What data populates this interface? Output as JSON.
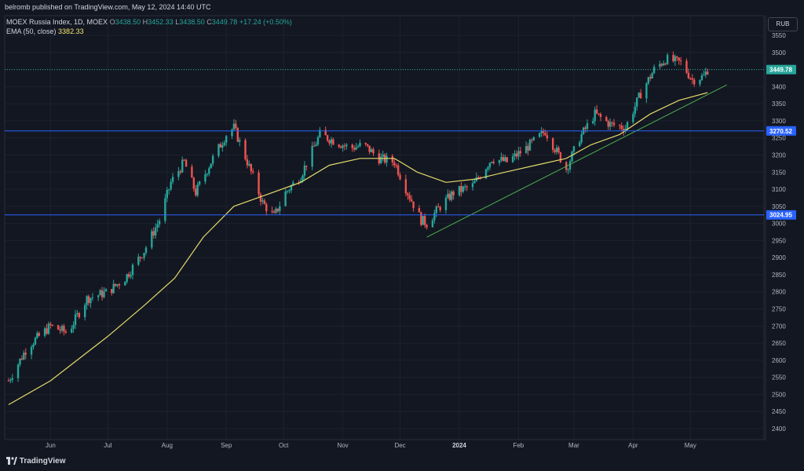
{
  "header": {
    "publisher_text": "belromb published on TradingView.com, May 12, 2024 14:40 UTC"
  },
  "legend": {
    "symbol": "MOEX Russia Index, 1D, MOEX",
    "o_label": "O",
    "o_value": "3438.50",
    "h_label": "H",
    "h_value": "3452.33",
    "l_label": "L",
    "l_value": "3438.50",
    "c_label": "C",
    "c_value": "3449.78",
    "change": "+17.24 (+0.50%)",
    "ema_label": "EMA (50, close)",
    "ema_value": "3382.33"
  },
  "currency_button": "RUB",
  "footer": {
    "logo_text": "TradingView"
  },
  "colors": {
    "background": "#131722",
    "up": "#26a69a",
    "down": "#ef5350",
    "ema": "#e3d96a",
    "hline": "#2962ff",
    "trendline": "#4caf50",
    "grid": "#1e222d"
  },
  "chart_data": {
    "type": "candlestick",
    "ylim": [
      2380,
      3580
    ],
    "y_ticks": [
      2400,
      2450,
      2500,
      2550,
      2600,
      2650,
      2700,
      2750,
      2800,
      2850,
      2900,
      2950,
      3000,
      3050,
      3100,
      3150,
      3200,
      3250,
      3300,
      3350,
      3400,
      3450,
      3500,
      3550
    ],
    "x_ticks": [
      {
        "label": "Jun",
        "date": "2023-06-01"
      },
      {
        "label": "Jul",
        "date": "2023-07-01"
      },
      {
        "label": "Aug",
        "date": "2023-08-01"
      },
      {
        "label": "Sep",
        "date": "2023-09-01"
      },
      {
        "label": "Oct",
        "date": "2023-10-01"
      },
      {
        "label": "Nov",
        "date": "2023-11-01"
      },
      {
        "label": "Dec",
        "date": "2023-12-01"
      },
      {
        "label": "2024",
        "date": "2024-01-01"
      },
      {
        "label": "Feb",
        "date": "2024-02-01"
      },
      {
        "label": "Mar",
        "date": "2024-03-01"
      },
      {
        "label": "Apr",
        "date": "2024-04-01"
      },
      {
        "label": "May",
        "date": "2024-05-01"
      }
    ],
    "price_path": [
      [
        "2023-05-10",
        2540
      ],
      [
        "2023-05-20",
        2640
      ],
      [
        "2023-06-01",
        2700
      ],
      [
        "2023-06-10",
        2680
      ],
      [
        "2023-06-20",
        2780
      ],
      [
        "2023-07-01",
        2800
      ],
      [
        "2023-07-10",
        2840
      ],
      [
        "2023-07-20",
        2920
      ],
      [
        "2023-07-28",
        3010
      ],
      [
        "2023-08-03",
        3120
      ],
      [
        "2023-08-10",
        3180
      ],
      [
        "2023-08-16",
        3090
      ],
      [
        "2023-08-24",
        3180
      ],
      [
        "2023-09-01",
        3260
      ],
      [
        "2023-09-05",
        3280
      ],
      [
        "2023-09-12",
        3180
      ],
      [
        "2023-09-20",
        3060
      ],
      [
        "2023-09-26",
        3020
      ],
      [
        "2023-10-02",
        3090
      ],
      [
        "2023-10-10",
        3140
      ],
      [
        "2023-10-20",
        3260
      ],
      [
        "2023-10-28",
        3240
      ],
      [
        "2023-11-05",
        3220
      ],
      [
        "2023-11-12",
        3230
      ],
      [
        "2023-11-20",
        3190
      ],
      [
        "2023-11-28",
        3180
      ],
      [
        "2023-12-05",
        3090
      ],
      [
        "2023-12-12",
        3010
      ],
      [
        "2023-12-15",
        3000
      ],
      [
        "2023-12-22",
        3050
      ],
      [
        "2023-12-29",
        3090
      ],
      [
        "2024-01-08",
        3110
      ],
      [
        "2024-01-18",
        3190
      ],
      [
        "2024-01-26",
        3180
      ],
      [
        "2024-02-05",
        3220
      ],
      [
        "2024-02-15",
        3270
      ],
      [
        "2024-02-22",
        3200
      ],
      [
        "2024-02-26",
        3160
      ],
      [
        "2024-03-04",
        3250
      ],
      [
        "2024-03-12",
        3320
      ],
      [
        "2024-03-20",
        3290
      ],
      [
        "2024-03-28",
        3280
      ],
      [
        "2024-04-05",
        3380
      ],
      [
        "2024-04-12",
        3450
      ],
      [
        "2024-04-18",
        3480
      ],
      [
        "2024-04-26",
        3470
      ],
      [
        "2024-05-02",
        3420
      ],
      [
        "2024-05-08",
        3430
      ],
      [
        "2024-05-10",
        3449.78
      ]
    ],
    "ema": [
      [
        "2023-05-10",
        2470
      ],
      [
        "2023-06-01",
        2540
      ],
      [
        "2023-07-01",
        2670
      ],
      [
        "2023-07-20",
        2760
      ],
      [
        "2023-08-05",
        2840
      ],
      [
        "2023-08-20",
        2960
      ],
      [
        "2023-09-05",
        3050
      ],
      [
        "2023-09-20",
        3080
      ],
      [
        "2023-10-10",
        3120
      ],
      [
        "2023-10-25",
        3170
      ],
      [
        "2023-11-10",
        3190
      ],
      [
        "2023-11-28",
        3190
      ],
      [
        "2023-12-10",
        3150
      ],
      [
        "2023-12-25",
        3120
      ],
      [
        "2024-01-10",
        3130
      ],
      [
        "2024-01-25",
        3150
      ],
      [
        "2024-02-10",
        3170
      ],
      [
        "2024-02-26",
        3190
      ],
      [
        "2024-03-10",
        3230
      ],
      [
        "2024-03-25",
        3260
      ],
      [
        "2024-04-10",
        3320
      ],
      [
        "2024-04-25",
        3360
      ],
      [
        "2024-05-10",
        3382.33
      ]
    ],
    "horizontal_lines": [
      3270.52,
      3024.95
    ],
    "trendline": [
      [
        "2023-12-15",
        2960
      ],
      [
        "2024-05-20",
        3405
      ]
    ],
    "last_price": 3449.78,
    "price_labels": [
      "3449.78",
      "3270.52",
      "3024.95"
    ]
  }
}
